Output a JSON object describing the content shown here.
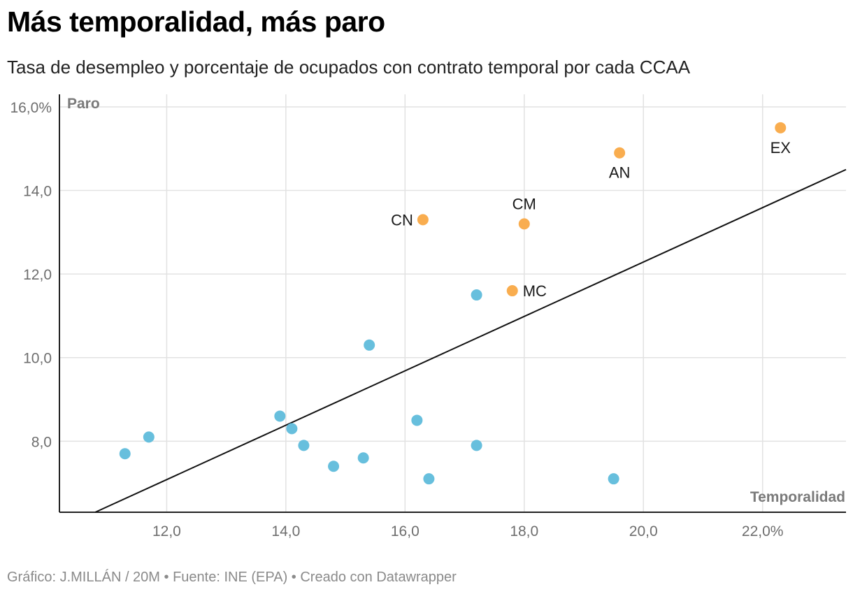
{
  "title": "Más temporalidad, más paro",
  "subtitle": "Tasa de desempleo y porcentaje de ocupados con contrato temporal por cada CCAA",
  "footer": {
    "prefix": "Gráfico: ",
    "author": "J.MILLÁN / 20M",
    "separator1": " • ",
    "source": "Fuente: INE (EPA)",
    "separator2": " • ",
    "created_with": "Creado con Datawrapper"
  },
  "colors": {
    "highlight": "#f9ad4f",
    "regular": "#67bfdd",
    "gridline": "#e2e2e2",
    "axis": "#222222",
    "trendline": "#111111"
  },
  "chart_data": {
    "type": "scatter",
    "title": "Más temporalidad, más paro",
    "xlabel": "Temporalidad",
    "ylabel": "Paro",
    "xlim": [
      10.2,
      23.4
    ],
    "ylim": [
      6.3,
      16.3
    ],
    "x_ticks": [
      {
        "value": 12,
        "label": "12,0"
      },
      {
        "value": 14,
        "label": "14,0"
      },
      {
        "value": 16,
        "label": "16,0"
      },
      {
        "value": 18,
        "label": "18,0"
      },
      {
        "value": 20,
        "label": "20,0"
      },
      {
        "value": 22,
        "label": "22,0%"
      }
    ],
    "y_ticks": [
      {
        "value": 8,
        "label": "8,0"
      },
      {
        "value": 10,
        "label": "10,0"
      },
      {
        "value": 12,
        "label": "12,0"
      },
      {
        "value": 14,
        "label": "14,0"
      },
      {
        "value": 16,
        "label": "16,0%"
      }
    ],
    "grid": true,
    "trendline": {
      "x1": 10.8,
      "y1": 6.3,
      "x2": 23.4,
      "y2": 14.5
    },
    "points": [
      {
        "x": 11.3,
        "y": 7.7,
        "highlight": false
      },
      {
        "x": 11.7,
        "y": 8.1,
        "highlight": false
      },
      {
        "x": 13.9,
        "y": 8.6,
        "highlight": false
      },
      {
        "x": 14.1,
        "y": 8.3,
        "highlight": false
      },
      {
        "x": 14.3,
        "y": 7.9,
        "highlight": false
      },
      {
        "x": 14.8,
        "y": 7.4,
        "highlight": false
      },
      {
        "x": 15.3,
        "y": 7.6,
        "highlight": false
      },
      {
        "x": 15.4,
        "y": 10.3,
        "highlight": false
      },
      {
        "x": 16.2,
        "y": 8.5,
        "highlight": false
      },
      {
        "x": 16.4,
        "y": 7.1,
        "highlight": false
      },
      {
        "x": 17.2,
        "y": 11.5,
        "highlight": false
      },
      {
        "x": 17.2,
        "y": 7.9,
        "highlight": false
      },
      {
        "x": 19.5,
        "y": 7.1,
        "highlight": false
      },
      {
        "x": 16.3,
        "y": 13.3,
        "highlight": true,
        "label": "CN",
        "label_pos": "left"
      },
      {
        "x": 18.0,
        "y": 13.2,
        "highlight": true,
        "label": "CM",
        "label_pos": "above"
      },
      {
        "x": 17.8,
        "y": 11.6,
        "highlight": true,
        "label": "MC",
        "label_pos": "right"
      },
      {
        "x": 19.6,
        "y": 14.9,
        "highlight": true,
        "label": "AN",
        "label_pos": "below"
      },
      {
        "x": 22.3,
        "y": 15.5,
        "highlight": true,
        "label": "EX",
        "label_pos": "below"
      }
    ]
  }
}
